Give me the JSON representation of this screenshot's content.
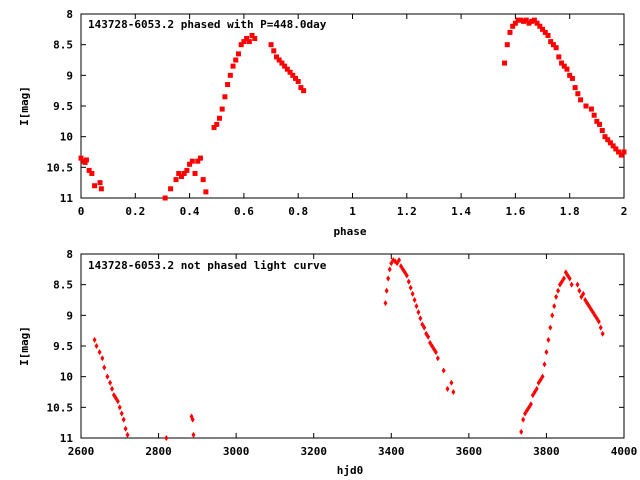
{
  "chart_data": [
    {
      "type": "scatter",
      "title": "143728-6053.2 phased with P=448.0day",
      "xlabel": "phase",
      "ylabel": "I[mag]",
      "xlim": [
        0,
        2
      ],
      "ylim": [
        8,
        11
      ],
      "y_inverted": true,
      "xticks": [
        0,
        0.2,
        0.4,
        0.6,
        0.8,
        1,
        1.2,
        1.4,
        1.6,
        1.8,
        2
      ],
      "xtick_labels": [
        "0",
        "0.2",
        "0.4",
        "0.6",
        "0.8",
        "1",
        "1.2",
        "1.4",
        "1.6",
        "1.8",
        "2"
      ],
      "yticks": [
        8,
        8.5,
        9,
        9.5,
        10,
        10.5,
        11
      ],
      "ytick_labels": [
        "8",
        "8.5",
        "9",
        "9.5",
        "10",
        "10.5",
        "11"
      ],
      "grid": false,
      "marker_color": "#ff0000",
      "series": [
        {
          "x": [
            0.0,
            0.01,
            0.015,
            0.02,
            0.03,
            0.04,
            0.05,
            0.07,
            0.075,
            0.31,
            0.33,
            0.35,
            0.36,
            0.37,
            0.38,
            0.39,
            0.4,
            0.41,
            0.42,
            0.43,
            0.44,
            0.45,
            0.46,
            0.49,
            0.5,
            0.51,
            0.52,
            0.53,
            0.54,
            0.55,
            0.56,
            0.57,
            0.58,
            0.59,
            0.6,
            0.61,
            0.62,
            0.63,
            0.64,
            0.7,
            0.71,
            0.72,
            0.73,
            0.74,
            0.75,
            0.76,
            0.77,
            0.78,
            0.79,
            0.8,
            0.81,
            0.82,
            1.56,
            1.57,
            1.58,
            1.59,
            1.6,
            1.61,
            1.62,
            1.63,
            1.64,
            1.65,
            1.66,
            1.67,
            1.68,
            1.69,
            1.7,
            1.71,
            1.72,
            1.73,
            1.74,
            1.75,
            1.76,
            1.77,
            1.78,
            1.79,
            1.8,
            1.81,
            1.82,
            1.83,
            1.84,
            1.86,
            1.88,
            1.89,
            1.9,
            1.91,
            1.92,
            1.93,
            1.94,
            1.95,
            1.96,
            1.97,
            1.98,
            1.99,
            2.0
          ],
          "y": [
            10.35,
            10.4,
            10.42,
            10.38,
            10.55,
            10.6,
            10.8,
            10.75,
            10.85,
            11.0,
            10.85,
            10.7,
            10.6,
            10.65,
            10.6,
            10.55,
            10.45,
            10.4,
            10.6,
            10.4,
            10.35,
            10.7,
            10.9,
            9.85,
            9.8,
            9.7,
            9.55,
            9.35,
            9.15,
            9.0,
            8.85,
            8.75,
            8.65,
            8.5,
            8.45,
            8.4,
            8.45,
            8.35,
            8.4,
            8.5,
            8.6,
            8.7,
            8.75,
            8.8,
            8.85,
            8.9,
            8.95,
            9.0,
            9.05,
            9.1,
            9.2,
            9.25,
            8.8,
            8.5,
            8.3,
            8.2,
            8.15,
            8.1,
            8.1,
            8.12,
            8.1,
            8.15,
            8.12,
            8.1,
            8.15,
            8.2,
            8.25,
            8.3,
            8.35,
            8.45,
            8.5,
            8.55,
            8.7,
            8.8,
            8.85,
            8.9,
            9.0,
            9.05,
            9.2,
            9.3,
            9.4,
            9.5,
            9.55,
            9.65,
            9.75,
            9.8,
            9.9,
            10.0,
            10.05,
            10.1,
            10.15,
            10.2,
            10.25,
            10.3,
            10.25
          ]
        }
      ]
    },
    {
      "type": "scatter",
      "title": "143728-6053.2 not phased light curve",
      "xlabel": "hjd0",
      "ylabel": "I[mag]",
      "xlim": [
        2600,
        4000
      ],
      "ylim": [
        8,
        11
      ],
      "y_inverted": true,
      "xticks": [
        2600,
        2800,
        3000,
        3200,
        3400,
        3600,
        3800,
        4000
      ],
      "xtick_labels": [
        "2600",
        "2800",
        "3000",
        "3200",
        "3400",
        "3600",
        "3800",
        "4000"
      ],
      "yticks": [
        8,
        8.5,
        9,
        9.5,
        10,
        10.5,
        11
      ],
      "ytick_labels": [
        "8",
        "8.5",
        "9",
        "9.5",
        "10",
        "10.5",
        "11"
      ],
      "grid": false,
      "marker_color": "#ff0000",
      "series": [
        {
          "x": [
            2635,
            2640,
            2648,
            2655,
            2660,
            2668,
            2675,
            2680,
            2685,
            2690,
            2695,
            2700,
            2705,
            2710,
            2715,
            2720,
            2820,
            2885,
            2888,
            2890,
            3385,
            3388,
            3392,
            3396,
            3400,
            3405,
            3410,
            3415,
            3420,
            3425,
            3430,
            3435,
            3440,
            3445,
            3450,
            3455,
            3460,
            3465,
            3470,
            3475,
            3480,
            3485,
            3490,
            3495,
            3500,
            3505,
            3510,
            3515,
            3520,
            3535,
            3545,
            3555,
            3560,
            3735,
            3740,
            3745,
            3750,
            3755,
            3760,
            3765,
            3770,
            3775,
            3780,
            3785,
            3790,
            3795,
            3800,
            3805,
            3810,
            3815,
            3820,
            3825,
            3830,
            3835,
            3840,
            3845,
            3850,
            3855,
            3860,
            3865,
            3880,
            3885,
            3890,
            3895,
            3900,
            3905,
            3910,
            3915,
            3920,
            3925,
            3930,
            3935,
            3940,
            3945
          ],
          "y": [
            9.4,
            9.5,
            9.6,
            9.7,
            9.85,
            10.0,
            10.1,
            10.2,
            10.3,
            10.35,
            10.4,
            10.5,
            10.6,
            10.7,
            10.85,
            10.95,
            11.0,
            10.65,
            10.7,
            10.95,
            8.8,
            8.6,
            8.4,
            8.25,
            8.15,
            8.1,
            8.12,
            8.15,
            8.1,
            8.2,
            8.25,
            8.3,
            8.35,
            8.45,
            8.55,
            8.65,
            8.75,
            8.85,
            8.95,
            9.05,
            9.15,
            9.2,
            9.3,
            9.35,
            9.45,
            9.5,
            9.55,
            9.6,
            9.7,
            9.9,
            10.2,
            10.1,
            10.25,
            10.9,
            10.7,
            10.6,
            10.55,
            10.5,
            10.45,
            10.3,
            10.25,
            10.2,
            10.1,
            10.05,
            10.0,
            9.8,
            9.6,
            9.4,
            9.2,
            9.0,
            8.85,
            8.7,
            8.6,
            8.5,
            8.45,
            8.4,
            8.3,
            8.35,
            8.4,
            8.5,
            8.5,
            8.6,
            8.7,
            8.65,
            8.75,
            8.8,
            8.85,
            8.9,
            8.95,
            9.0,
            9.05,
            9.1,
            9.2,
            9.3
          ]
        }
      ]
    }
  ]
}
